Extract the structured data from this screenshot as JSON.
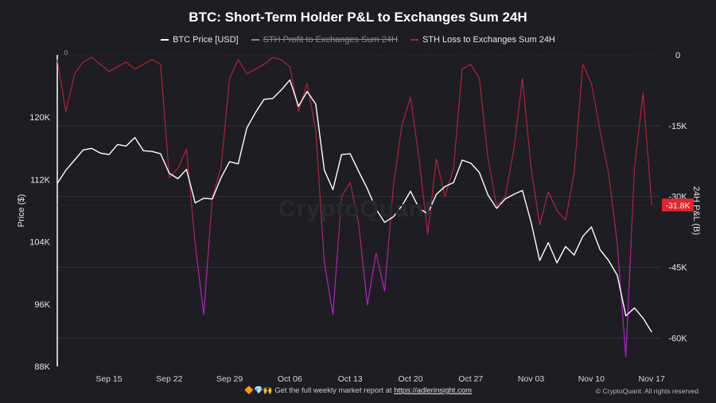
{
  "chart_data": {
    "type": "line",
    "title": "BTC: Short-Term Holder P&L to Exchanges Sum 24H",
    "watermark": "CryptoQuant",
    "x_tick_labels": [
      "Sep 15",
      "Sep 22",
      "Sep 29",
      "Oct 06",
      "Oct 13",
      "Oct 20",
      "Oct 27",
      "Nov 03",
      "Nov 10",
      "Nov 17"
    ],
    "x_range": [
      "2025-09-09",
      "2025-11-18"
    ],
    "left_axis": {
      "label": "Price ($)",
      "range": [
        88000,
        128000
      ],
      "tick_values": [
        88000,
        96000,
        104000,
        112000,
        120000
      ],
      "tick_labels": [
        "88K",
        "96K",
        "104K",
        "112K",
        "120K"
      ]
    },
    "right_axis": {
      "label": "24H P&L (B)",
      "range": [
        -66000,
        0
      ],
      "tick_values": [
        0,
        -15000,
        -30000,
        -45000,
        -60000
      ],
      "tick_labels": [
        "0",
        "-15K",
        "-30K",
        "-45K",
        "-60K"
      ],
      "last_value_label": "-31.8K",
      "last_value": -31800
    },
    "left_top_zero_label": "0",
    "series": [
      {
        "name": "BTC Price [USD]",
        "axis": "left",
        "color": "#ffffff",
        "points": [
          [
            "2025-09-09",
            111500
          ],
          [
            "2025-09-10",
            113200
          ],
          [
            "2025-09-11",
            114500
          ],
          [
            "2025-09-12",
            115800
          ],
          [
            "2025-09-13",
            116000
          ],
          [
            "2025-09-14",
            115400
          ],
          [
            "2025-09-15",
            115200
          ],
          [
            "2025-09-16",
            116500
          ],
          [
            "2025-09-17",
            116300
          ],
          [
            "2025-09-18",
            117400
          ],
          [
            "2025-09-19",
            115700
          ],
          [
            "2025-09-20",
            115600
          ],
          [
            "2025-09-21",
            115300
          ],
          [
            "2025-09-22",
            112800
          ],
          [
            "2025-09-23",
            112100
          ],
          [
            "2025-09-24",
            113300
          ],
          [
            "2025-09-25",
            109000
          ],
          [
            "2025-09-26",
            109600
          ],
          [
            "2025-09-27",
            109500
          ],
          [
            "2025-09-28",
            112200
          ],
          [
            "2025-09-29",
            114300
          ],
          [
            "2025-09-30",
            114000
          ],
          [
            "2025-10-01",
            118600
          ],
          [
            "2025-10-02",
            120600
          ],
          [
            "2025-10-03",
            122300
          ],
          [
            "2025-10-04",
            122400
          ],
          [
            "2025-10-05",
            123500
          ],
          [
            "2025-10-06",
            124800
          ],
          [
            "2025-10-07",
            121400
          ],
          [
            "2025-10-08",
            123300
          ],
          [
            "2025-10-09",
            121700
          ],
          [
            "2025-10-10",
            113200
          ],
          [
            "2025-10-11",
            110700
          ],
          [
            "2025-10-12",
            115200
          ],
          [
            "2025-10-13",
            115300
          ],
          [
            "2025-10-14",
            113000
          ],
          [
            "2025-10-15",
            110800
          ],
          [
            "2025-10-16",
            108200
          ],
          [
            "2025-10-17",
            106500
          ],
          [
            "2025-10-18",
            107200
          ],
          [
            "2025-10-19",
            108600
          ],
          [
            "2025-10-20",
            110500
          ],
          [
            "2025-10-21",
            108300
          ],
          [
            "2025-10-22",
            107600
          ],
          [
            "2025-10-23",
            110100
          ],
          [
            "2025-10-24",
            111100
          ],
          [
            "2025-10-25",
            111600
          ],
          [
            "2025-10-26",
            114500
          ],
          [
            "2025-10-27",
            114100
          ],
          [
            "2025-10-28",
            112900
          ],
          [
            "2025-10-29",
            110000
          ],
          [
            "2025-10-30",
            108300
          ],
          [
            "2025-10-31",
            109500
          ],
          [
            "2025-11-01",
            110100
          ],
          [
            "2025-11-02",
            110600
          ],
          [
            "2025-11-03",
            106500
          ],
          [
            "2025-11-04",
            101600
          ],
          [
            "2025-11-05",
            103900
          ],
          [
            "2025-11-06",
            101300
          ],
          [
            "2025-11-07",
            103400
          ],
          [
            "2025-11-08",
            102300
          ],
          [
            "2025-11-09",
            104700
          ],
          [
            "2025-11-10",
            105900
          ],
          [
            "2025-11-11",
            103000
          ],
          [
            "2025-11-12",
            101600
          ],
          [
            "2025-11-13",
            99700
          ],
          [
            "2025-11-14",
            94500
          ],
          [
            "2025-11-15",
            95500
          ],
          [
            "2025-11-16",
            94200
          ],
          [
            "2025-11-17",
            92400
          ]
        ]
      },
      {
        "name": "STH Profit to Exchanges Sum 24H",
        "axis": "right",
        "color": "#8b8a92",
        "hidden": true,
        "points": []
      },
      {
        "name": "STH Loss to Exchanges Sum 24H",
        "axis": "right",
        "color": "#b3213a",
        "points": [
          [
            "2025-09-09",
            -1000
          ],
          [
            "2025-09-10",
            -12000
          ],
          [
            "2025-09-11",
            -4000
          ],
          [
            "2025-09-12",
            -1500
          ],
          [
            "2025-09-13",
            -500
          ],
          [
            "2025-09-14",
            -2000
          ],
          [
            "2025-09-15",
            -3500
          ],
          [
            "2025-09-16",
            -2500
          ],
          [
            "2025-09-17",
            -1500
          ],
          [
            "2025-09-18",
            -3000
          ],
          [
            "2025-09-19",
            -2000
          ],
          [
            "2025-09-20",
            -1000
          ],
          [
            "2025-09-21",
            -2000
          ],
          [
            "2025-09-22",
            -26000
          ],
          [
            "2025-09-23",
            -24000
          ],
          [
            "2025-09-24",
            -20000
          ],
          [
            "2025-09-25",
            -40000
          ],
          [
            "2025-09-26",
            -55000
          ],
          [
            "2025-09-27",
            -30000
          ],
          [
            "2025-09-28",
            -24000
          ],
          [
            "2025-09-29",
            -5000
          ],
          [
            "2025-09-30",
            -1000
          ],
          [
            "2025-10-01",
            -4000
          ],
          [
            "2025-10-02",
            -3000
          ],
          [
            "2025-10-03",
            -2000
          ],
          [
            "2025-10-04",
            -500
          ],
          [
            "2025-10-05",
            -1000
          ],
          [
            "2025-10-06",
            -2500
          ],
          [
            "2025-10-07",
            -12000
          ],
          [
            "2025-10-08",
            -6000
          ],
          [
            "2025-10-09",
            -16000
          ],
          [
            "2025-10-10",
            -44000
          ],
          [
            "2025-10-11",
            -55000
          ],
          [
            "2025-10-12",
            -30000
          ],
          [
            "2025-10-13",
            -27000
          ],
          [
            "2025-10-14",
            -36000
          ],
          [
            "2025-10-15",
            -53000
          ],
          [
            "2025-10-16",
            -42000
          ],
          [
            "2025-10-17",
            -50000
          ],
          [
            "2025-10-18",
            -28000
          ],
          [
            "2025-10-19",
            -15000
          ],
          [
            "2025-10-20",
            -9000
          ],
          [
            "2025-10-21",
            -22000
          ],
          [
            "2025-10-22",
            -38000
          ],
          [
            "2025-10-23",
            -22000
          ],
          [
            "2025-10-24",
            -30000
          ],
          [
            "2025-10-25",
            -24000
          ],
          [
            "2025-10-26",
            -3000
          ],
          [
            "2025-10-27",
            -2000
          ],
          [
            "2025-10-28",
            -5000
          ],
          [
            "2025-10-29",
            -22000
          ],
          [
            "2025-10-30",
            -32000
          ],
          [
            "2025-10-31",
            -30000
          ],
          [
            "2025-11-01",
            -20000
          ],
          [
            "2025-11-02",
            -5000
          ],
          [
            "2025-11-03",
            -24000
          ],
          [
            "2025-11-04",
            -36000
          ],
          [
            "2025-11-05",
            -29000
          ],
          [
            "2025-11-06",
            -33000
          ],
          [
            "2025-11-07",
            -35000
          ],
          [
            "2025-11-08",
            -25000
          ],
          [
            "2025-11-09",
            -2000
          ],
          [
            "2025-11-10",
            -6000
          ],
          [
            "2025-11-11",
            -16000
          ],
          [
            "2025-11-12",
            -25000
          ],
          [
            "2025-11-13",
            -40000
          ],
          [
            "2025-11-14",
            -64000
          ],
          [
            "2025-11-15",
            -24000
          ],
          [
            "2025-11-16",
            -8000
          ],
          [
            "2025-11-17",
            -31800
          ]
        ]
      }
    ],
    "grid": true,
    "legend_position": "top-center"
  },
  "colors": {
    "background": "#1e1d23",
    "price_line": "#ffffff",
    "loss_line": "#b3213a",
    "loss_line_deep": "#b520c8",
    "last_value_badge": "#e0262d",
    "grid": "#34333b"
  },
  "footer": {
    "icons": "🔶💎🙌",
    "text": "Get the full weekly market report at",
    "link": "https://adlerinsight.com",
    "copyright": "© CryptoQuant. All rights reserved"
  }
}
